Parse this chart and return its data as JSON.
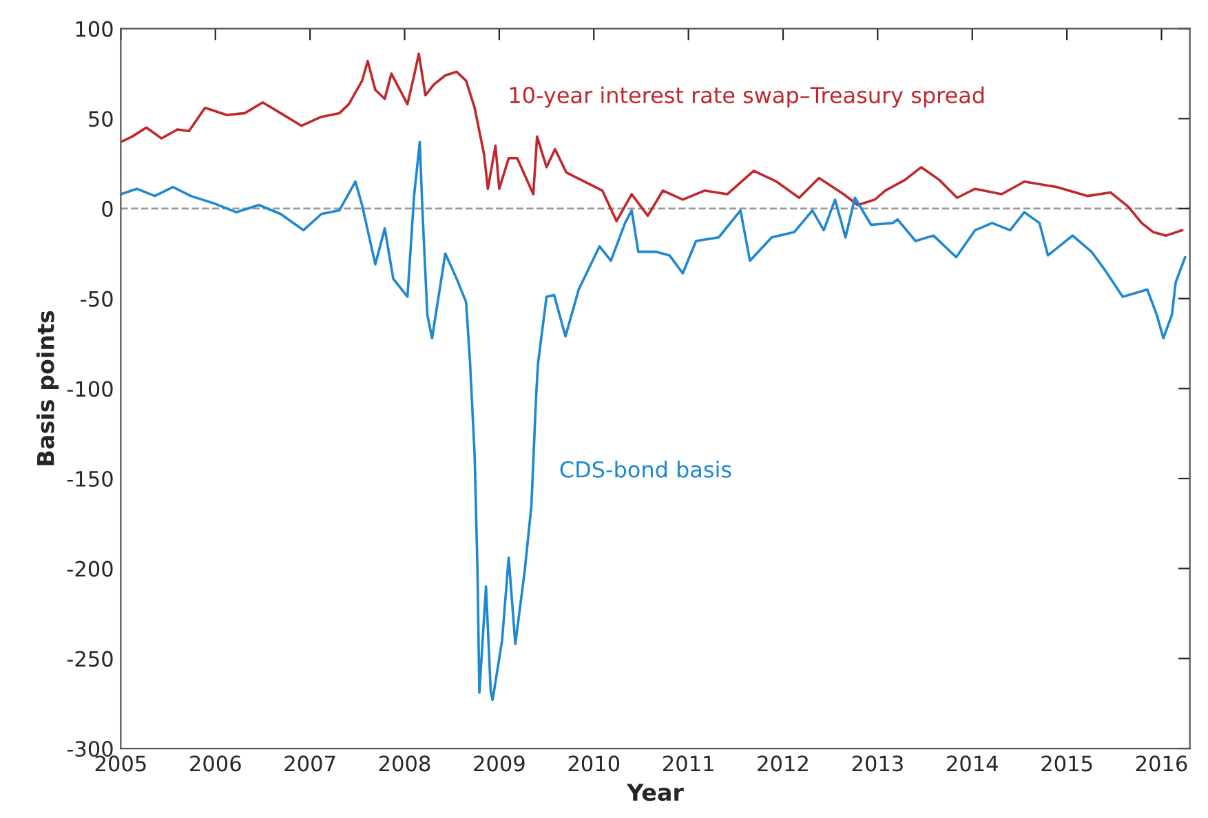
{
  "chart_data": {
    "type": "line",
    "xlabel": "Year",
    "ylabel": "Basis points",
    "xlim": [
      2005,
      2016.3
    ],
    "xticks": [
      2005,
      2006,
      2007,
      2008,
      2009,
      2010,
      2011,
      2012,
      2013,
      2014,
      2015,
      2016
    ],
    "ylim": [
      -300,
      100
    ],
    "yticks": [
      -300,
      -250,
      -200,
      -150,
      -100,
      -50,
      0,
      50,
      100
    ],
    "grid": false,
    "legend": false,
    "line_style": "solid",
    "marker": "none",
    "ref_lines": [
      {
        "axis": "y",
        "value": 0,
        "color": "#9a9a9a",
        "line_style": "dashed"
      }
    ],
    "series": [
      {
        "name": "10-year interest rate swap–Treasury spread",
        "color": "#c0282d",
        "x": [
          2005.0,
          2005.12,
          2005.27,
          2005.43,
          2005.6,
          2005.72,
          2005.89,
          2006.12,
          2006.31,
          2006.5,
          2006.69,
          2006.91,
          2007.12,
          2007.31,
          2007.41,
          2007.55,
          2007.61,
          2007.69,
          2007.79,
          2007.86,
          2008.03,
          2008.1,
          2008.15,
          2008.22,
          2008.31,
          2008.43,
          2008.55,
          2008.65,
          2008.74,
          2008.84,
          2008.88,
          2008.96,
          2009.0,
          2009.1,
          2009.19,
          2009.36,
          2009.4,
          2009.5,
          2009.59,
          2009.71,
          2009.9,
          2010.09,
          2010.24,
          2010.4,
          2010.57,
          2010.73,
          2010.94,
          2011.17,
          2011.41,
          2011.69,
          2011.93,
          2012.17,
          2012.38,
          2012.64,
          2012.79,
          2012.97,
          2013.08,
          2013.29,
          2013.46,
          2013.65,
          2013.84,
          2014.03,
          2014.31,
          2014.55,
          2014.89,
          2015.22,
          2015.46,
          2015.65,
          2015.79,
          2015.91,
          2016.05,
          2016.22
        ],
        "values": [
          37,
          40,
          45,
          39,
          44,
          43,
          56,
          52,
          53,
          59,
          53,
          46,
          51,
          53,
          58,
          71,
          82,
          66,
          61,
          75,
          58,
          74,
          86,
          63,
          69,
          74,
          76,
          71,
          56,
          30,
          11,
          35,
          11,
          28,
          28,
          8,
          40,
          23,
          33,
          20,
          15,
          10,
          -7,
          8,
          -4,
          10,
          5,
          10,
          8,
          21,
          15,
          6,
          17,
          8,
          2,
          5,
          10,
          16,
          23,
          16,
          6,
          11,
          8,
          15,
          12,
          7,
          9,
          1,
          -8,
          -13,
          -15,
          -12
        ]
      },
      {
        "name": "CDS-bond basis",
        "color": "#1f88d0",
        "x": [
          2005.0,
          2005.17,
          2005.36,
          2005.55,
          2005.74,
          2005.98,
          2006.22,
          2006.46,
          2006.69,
          2006.93,
          2007.12,
          2007.31,
          2007.48,
          2007.55,
          2007.69,
          2007.79,
          2007.88,
          2008.03,
          2008.1,
          2008.16,
          2008.19,
          2008.24,
          2008.29,
          2008.43,
          2008.55,
          2008.65,
          2008.69,
          2008.74,
          2008.77,
          2008.79,
          2008.86,
          2008.91,
          2008.93,
          2009.03,
          2009.1,
          2009.17,
          2009.27,
          2009.34,
          2009.39,
          2009.41,
          2009.5,
          2009.58,
          2009.7,
          2009.84,
          2010.06,
          2010.18,
          2010.33,
          2010.4,
          2010.47,
          2010.66,
          2010.8,
          2010.94,
          2011.08,
          2011.32,
          2011.55,
          2011.65,
          2011.88,
          2012.12,
          2012.31,
          2012.43,
          2012.55,
          2012.66,
          2012.76,
          2012.93,
          2013.16,
          2013.21,
          2013.4,
          2013.59,
          2013.83,
          2014.03,
          2014.21,
          2014.4,
          2014.55,
          2014.71,
          2014.8,
          2015.06,
          2015.26,
          2015.4,
          2015.59,
          2015.85,
          2015.95,
          2016.02,
          2016.11,
          2016.15,
          2016.25
        ],
        "values": [
          8,
          11,
          7,
          12,
          7,
          3,
          -2,
          2,
          -3,
          -12,
          -3,
          -1,
          15,
          2,
          -31,
          -11,
          -39,
          -49,
          7,
          37,
          -3,
          -59,
          -72,
          -25,
          -39,
          -52,
          -84,
          -137,
          -201,
          -269,
          -210,
          -268,
          -273,
          -240,
          -194,
          -242,
          -201,
          -165,
          -104,
          -86,
          -49,
          -48,
          -71,
          -45,
          -21,
          -29,
          -8,
          -1,
          -24,
          -24,
          -26,
          -36,
          -18,
          -16,
          -1,
          -29,
          -16,
          -13,
          -1,
          -12,
          5,
          -16,
          6,
          -9,
          -8,
          -6,
          -18,
          -15,
          -27,
          -12,
          -8,
          -12,
          -2,
          -8,
          -26,
          -15,
          -24,
          -34,
          -49,
          -45,
          -59,
          -72,
          -59,
          -41,
          -27
        ]
      }
    ]
  }
}
